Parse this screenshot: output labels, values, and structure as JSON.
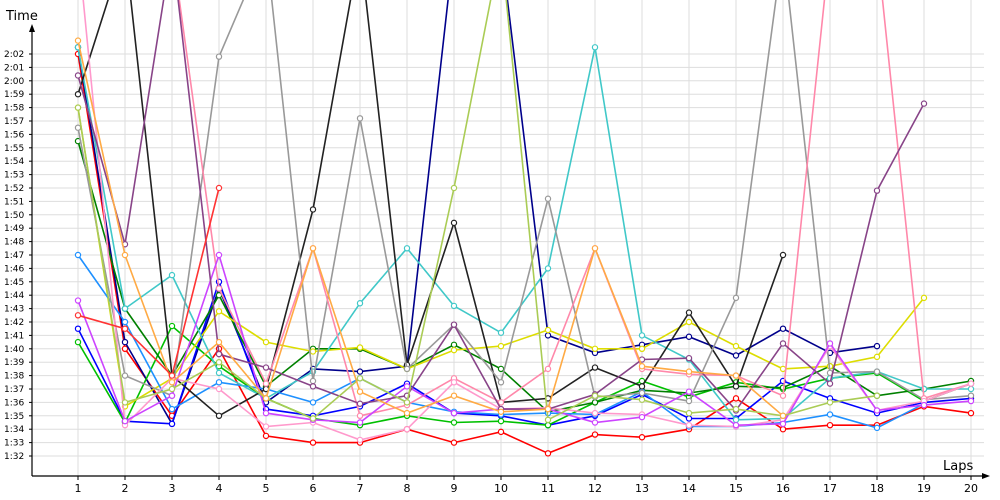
{
  "chart_data": {
    "type": "line",
    "xlabel": "Laps",
    "ylabel": "Time",
    "x": [
      1,
      2,
      3,
      4,
      5,
      6,
      7,
      8,
      9,
      10,
      11,
      12,
      13,
      14,
      15,
      16,
      17,
      18,
      19,
      20
    ],
    "y_ticks": [
      "1:32",
      "1:33",
      "1:34",
      "1:35",
      "1:36",
      "1:37",
      "1:38",
      "1:39",
      "1:40",
      "1:41",
      "1:42",
      "1:43",
      "1:44",
      "1:45",
      "1:46",
      "1:47",
      "1:48",
      "1:49",
      "1:50",
      "1:51",
      "1:52",
      "1:53",
      "1:54",
      "1:55",
      "1:56",
      "1:57",
      "1:58",
      "1:59",
      "2:00",
      "2:01",
      "2:02"
    ],
    "ylim_seconds": [
      91,
      123.5
    ],
    "grid": true,
    "series": [
      {
        "color": "#ff0000",
        "values": [
          122,
          100,
          95,
          100,
          93.5,
          93,
          93,
          94,
          93,
          93.8,
          92.2,
          93.6,
          93.4,
          94,
          96.3,
          94,
          94.3,
          94.3,
          95.7,
          95.2
        ]
      },
      {
        "color": "#00008b",
        "values": [
          122.5,
          100.5,
          94.4,
          104.5,
          96,
          98.5,
          98.3,
          98.7,
          130,
          130,
          101,
          99.7,
          100.3,
          100.9,
          99.5,
          101.5,
          99.7,
          100.2,
          null,
          null
        ]
      },
      {
        "color": "#0000ff",
        "values": [
          101.5,
          94.6,
          94.4,
          105,
          95.5,
          95,
          95.7,
          97.4,
          95.2,
          95,
          94.3,
          95,
          96.6,
          94.8,
          94.8,
          97.6,
          96.3,
          95.2,
          96,
          96.3
        ]
      },
      {
        "color": "#00c000",
        "values": [
          100.5,
          94.5,
          101.7,
          98.7,
          96.3,
          94.8,
          94.3,
          95,
          94.5,
          94.6,
          94.3,
          96,
          97.6,
          96.4,
          97.5,
          97,
          97.8,
          98.2,
          96.1,
          97.4
        ]
      },
      {
        "color": "#008000",
        "values": [
          115.5,
          103,
          98,
          104,
          97.2,
          100,
          100,
          98.5,
          100.3,
          98.5,
          95.3,
          96,
          96.9,
          96.7,
          97.2,
          97.1,
          98.7,
          96.5,
          97,
          97.6
        ]
      },
      {
        "color": "#dddd00",
        "values": [
          118,
          95.7,
          97.8,
          102.8,
          100.5,
          99.8,
          100.1,
          98.5,
          99.9,
          100.2,
          101.4,
          100,
          100,
          102,
          100.2,
          98.5,
          98.7,
          99.4,
          103.8,
          null
        ]
      },
      {
        "color": "#1e90ff",
        "values": [
          107,
          102,
          95.5,
          97.5,
          97,
          96,
          97.8,
          96,
          95.3,
          95.1,
          95.2,
          95.1,
          96.8,
          94.2,
          94.2,
          94.5,
          95.1,
          94.1,
          95.9,
          null
        ]
      },
      {
        "color": "#40c8c8",
        "values": [
          122.5,
          103,
          105.5,
          98.2,
          96.3,
          98.3,
          103.4,
          107.5,
          103.2,
          101.2,
          106,
          122.5,
          101,
          99.2,
          94.7,
          94.8,
          97.8,
          98.3,
          97,
          97
        ]
      },
      {
        "color": "#222222",
        "values": [
          119,
          130,
          98,
          95,
          97,
          110.4,
          130,
          98.8,
          109.4,
          96,
          96.3,
          98.6,
          97.2,
          102.7,
          97.2,
          107,
          null,
          null,
          null,
          null
        ]
      },
      {
        "color": "#999999",
        "values": [
          116.5,
          98,
          96.5,
          121.8,
          130,
          97.6,
          117.2,
          98.5,
          101.8,
          97.5,
          111.2,
          96.4,
          96.7,
          96.1,
          103.8,
          130,
          98.2,
          98.3,
          96.2,
          96.5
        ]
      },
      {
        "color": "#ff88aa",
        "values": [
          130,
          130,
          130,
          104.5,
          97.4,
          107.5,
          95,
          95.8,
          97.8,
          96,
          98.5,
          107.5,
          98.5,
          98.1,
          98,
          96.5,
          130,
          130,
          96.3,
          97.4
        ]
      },
      {
        "color": "#ff99cc",
        "values": [
          130,
          94.3,
          97.8,
          97,
          94.2,
          94.5,
          93.2,
          94,
          97.5,
          95.5,
          95.6,
          95.2,
          95.1,
          94.3,
          94.2,
          94.7,
          100.2,
          95.4,
          96.1,
          97.4
        ]
      },
      {
        "color": "#cc44ff",
        "values": [
          103.6,
          94.6,
          96.5,
          107,
          95.2,
          94.7,
          94.5,
          97.2,
          95.2,
          95.5,
          95.5,
          94.5,
          94.9,
          96.8,
          94.3,
          94.4,
          100.4,
          95.4,
          95.8,
          96.1
        ]
      },
      {
        "color": "#884488",
        "values": [
          120.4,
          107.8,
          130,
          99.6,
          98.6,
          97.2,
          95.9,
          96.5,
          101.8,
          95.5,
          95.5,
          96.6,
          99.2,
          99.3,
          95.4,
          100.4,
          97.4,
          111.8,
          118.3,
          null
        ]
      },
      {
        "color": "#aacc55",
        "values": [
          118,
          96,
          97,
          99,
          96.3,
          94.8,
          97.8,
          96,
          112,
          130,
          94.7,
          96.5,
          96.2,
          95.2,
          95.5,
          95,
          96,
          96.5,
          null,
          null
        ]
      },
      {
        "color": "#ffaa44",
        "values": [
          123,
          107,
          97.5,
          100.5,
          96.3,
          107.5,
          96.8,
          95.2,
          96.5,
          95.3,
          95.5,
          107.5,
          98.7,
          98.3,
          98,
          95,
          null,
          null,
          null,
          null
        ]
      },
      {
        "color": "#ff3333",
        "values": [
          102.5,
          101.5,
          98,
          112,
          null,
          null,
          null,
          null,
          null,
          null,
          null,
          null,
          null,
          null,
          null,
          null,
          null,
          null,
          null,
          null
        ]
      }
    ]
  }
}
